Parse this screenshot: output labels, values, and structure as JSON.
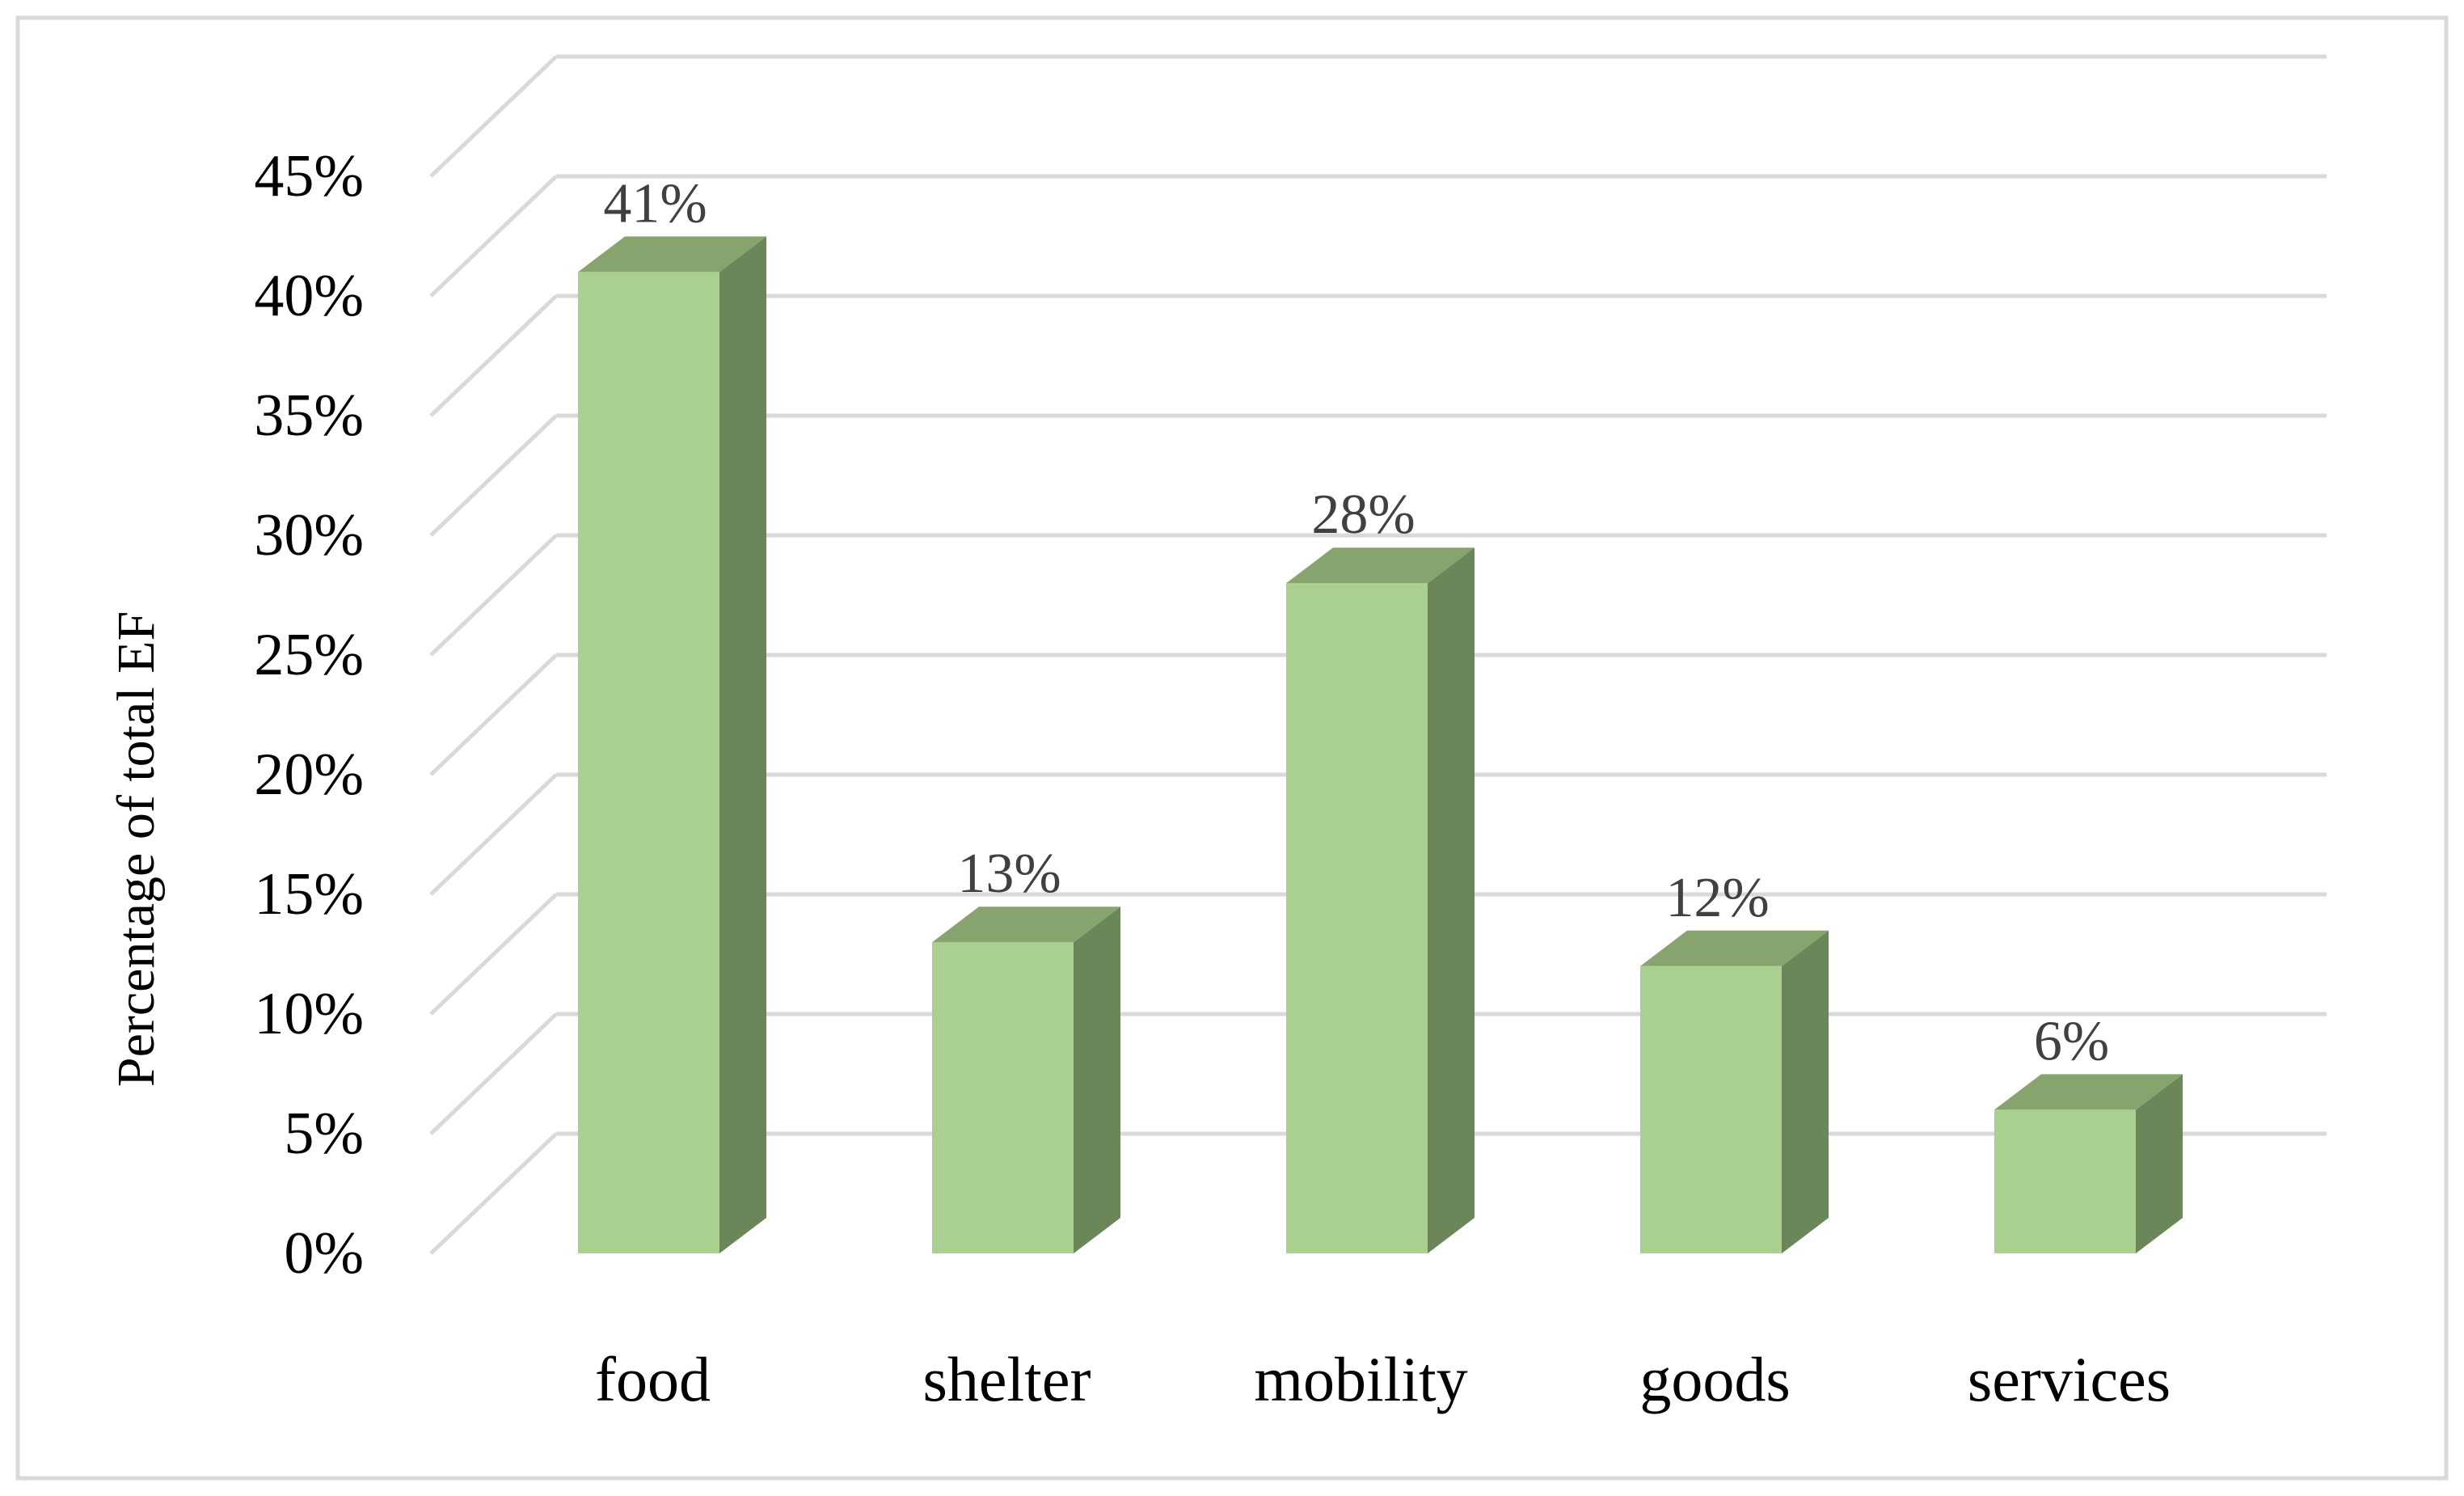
{
  "chart_data": {
    "type": "bar",
    "title": "",
    "xlabel": "",
    "ylabel": "Percentage of total EF",
    "categories": [
      "food",
      "shelter",
      "mobility",
      "goods",
      "services"
    ],
    "values": [
      41,
      13,
      28,
      12,
      6
    ],
    "data_labels": [
      "41%",
      "13%",
      "28%",
      "12%",
      "6%"
    ],
    "ylim": [
      0,
      45
    ],
    "yticks": [
      0,
      5,
      10,
      15,
      20,
      25,
      30,
      35,
      40,
      45
    ],
    "ytick_labels": [
      "0%",
      "5%",
      "10%",
      "15%",
      "20%",
      "25%",
      "30%",
      "35%",
      "40%",
      "45%"
    ],
    "grid": true,
    "style": "3d-column"
  },
  "colors": {
    "bar_front": "#a9d08e",
    "bar_side": "#6b8659",
    "bar_top": "#87a46f",
    "grid": "#d9d9d9",
    "frame": "#d9d9d9"
  }
}
